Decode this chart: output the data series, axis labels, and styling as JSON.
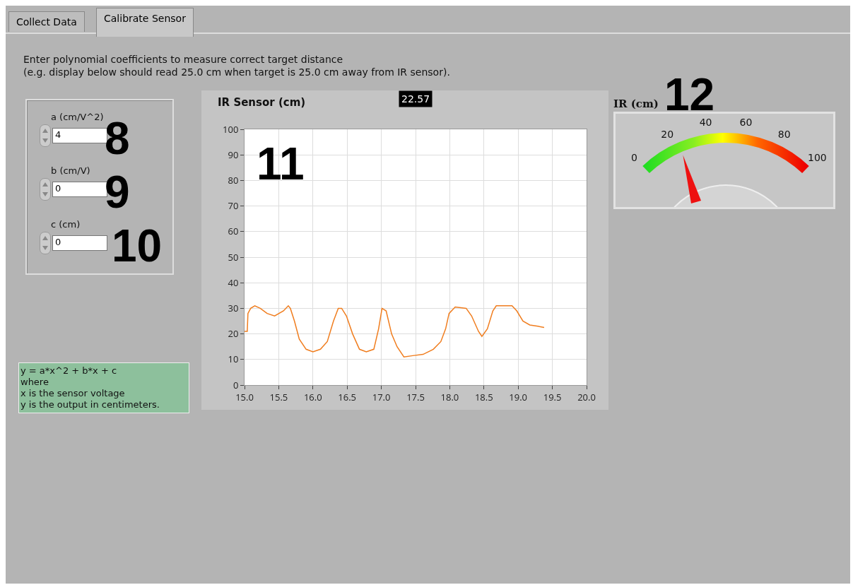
{
  "chart_data": [
    {
      "type": "other",
      "annotations": [
        "Collect Data",
        "Calibrate Sensor",
        "Enter polynomial coefficients to measure correct target distance",
        "(e.g. display below should read 25.0 cm when target is 25.0 cm away from IR sensor)."
      ]
    },
    {
      "type": "other",
      "annotations": [
        "a (cm/V^2)",
        "4",
        "8",
        "b (cm/V)",
        "0",
        "9",
        "c (cm)",
        "0",
        "10"
      ]
    },
    {
      "type": "line",
      "title": "IR Sensor (cm)",
      "color": "#f07d1e",
      "x": [
        15.0,
        15.04,
        15.05,
        15.09,
        15.15,
        15.23,
        15.33,
        15.44,
        15.57,
        15.64,
        15.67,
        15.73,
        15.8,
        15.9,
        16.0,
        16.11,
        16.21,
        16.3,
        16.37,
        16.42,
        16.49,
        16.58,
        16.68,
        16.78,
        16.89,
        16.96,
        17.01,
        17.07,
        17.15,
        17.23,
        17.33,
        17.46,
        17.61,
        17.76,
        17.87,
        17.94,
        17.99,
        18.08,
        18.24,
        18.32,
        18.42,
        18.47,
        18.55,
        18.63,
        18.68,
        18.91,
        18.98,
        19.07,
        19.17,
        19.29,
        19.38
      ],
      "values": [
        21,
        21,
        28,
        30,
        31,
        30,
        28,
        27,
        29,
        31,
        30,
        25,
        18,
        14,
        13,
        14,
        17,
        25,
        30,
        30,
        27,
        20,
        14,
        13,
        14,
        22,
        30,
        29,
        20,
        15,
        11,
        11.5,
        12,
        14,
        17,
        22,
        28,
        30.5,
        30,
        27,
        21,
        19,
        22,
        29,
        31,
        31,
        29,
        25,
        23.5,
        23,
        22.5
      ],
      "xlim": [
        15,
        20
      ],
      "xticks": [
        {
          "value": 15,
          "label": "15.0"
        },
        {
          "value": 15.5,
          "label": "15.5"
        },
        {
          "value": 16,
          "label": "16.0"
        },
        {
          "value": 16.5,
          "label": "16.5"
        },
        {
          "value": 17,
          "label": "17.0"
        },
        {
          "value": 17.5,
          "label": "17.5"
        },
        {
          "value": 18,
          "label": "18.0"
        },
        {
          "value": 18.5,
          "label": "18.5"
        },
        {
          "value": 19,
          "label": "19.0"
        },
        {
          "value": 19.5,
          "label": "19.5"
        },
        {
          "value": 20,
          "label": "20.0"
        }
      ],
      "ylim": [
        0,
        100
      ],
      "yticks": [
        0,
        10,
        20,
        30,
        40,
        50,
        60,
        70,
        80,
        90,
        100
      ],
      "grid": true,
      "annotations": [
        "22.57",
        "11"
      ]
    },
    {
      "type": "other",
      "title": "IR (cm)",
      "annotations": [
        "12",
        "0",
        "20",
        "40",
        "60",
        "80",
        "100"
      ]
    },
    {
      "type": "other",
      "annotations": [
        "y = a*x^2 + b*x + c",
        "where",
        "x is the sensor voltage",
        "y is the output in centimeters."
      ]
    }
  ]
}
